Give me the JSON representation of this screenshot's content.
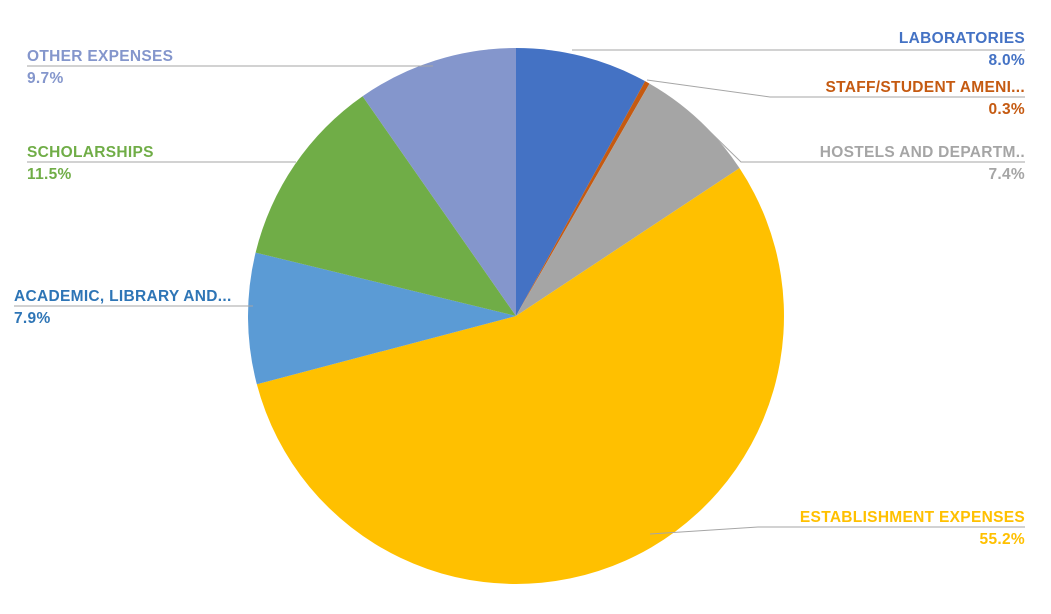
{
  "chart": {
    "background_color": "#FFFFFF",
    "leader_line_color": "#A6A6A6"
  },
  "chart_data": {
    "type": "pie",
    "title": "",
    "start_angle_deg": 0,
    "direction": "clockwise",
    "legend": "none",
    "label_style": "category name and percentage outside slices with leader lines",
    "slices": [
      {
        "label": "LABORATORIES",
        "value": 8.0,
        "percent_display": "8.0%",
        "color": "#4472C4"
      },
      {
        "label": "STAFF/STUDENT AMENI...",
        "value": 0.3,
        "percent_display": "0.3%",
        "color": "#C55A11"
      },
      {
        "label": "HOSTELS AND DEPARTM..",
        "value": 7.4,
        "percent_display": "7.4%",
        "color": "#A5A5A5"
      },
      {
        "label": "ESTABLISHMENT EXPENSES",
        "value": 55.2,
        "percent_display": "55.2%",
        "color": "#FFC000"
      },
      {
        "label": "ACADEMIC, LIBRARY AND...",
        "value": 7.9,
        "percent_display": "7.9%",
        "color": "#5B9BD5",
        "label_color": "#2E75B6"
      },
      {
        "label": "SCHOLARSHIPS",
        "value": 11.5,
        "percent_display": "11.5%",
        "color": "#70AD47"
      },
      {
        "label": "OTHER EXPENSES",
        "value": 9.7,
        "percent_display": "9.7%",
        "color": "#8496CC"
      }
    ]
  }
}
